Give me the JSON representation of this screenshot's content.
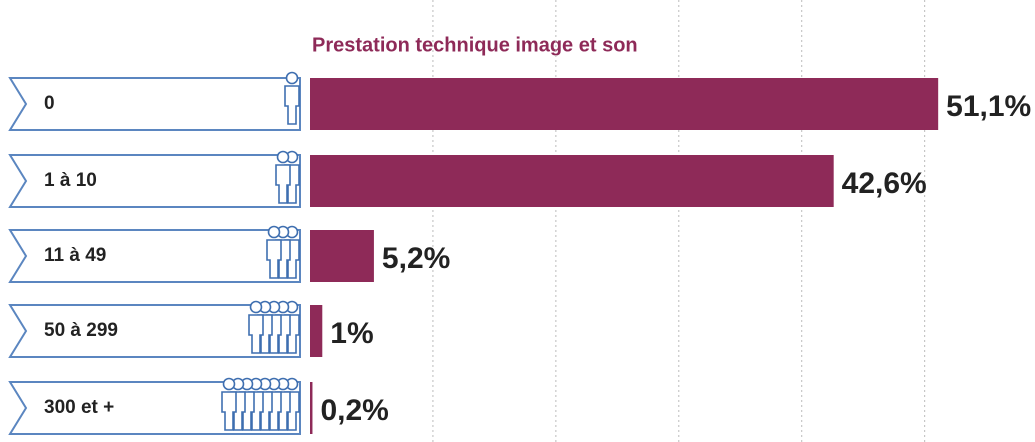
{
  "chart_data": {
    "type": "hbar",
    "title": "Prestation technique image et son",
    "categories": [
      "0",
      "1 à 10",
      "11 à 49",
      "50 à 299",
      "300 et +"
    ],
    "values": [
      51.1,
      42.6,
      5.2,
      1,
      0.2
    ],
    "value_labels": [
      "51,1%",
      "42,6%",
      "5,2%",
      "1%",
      "0,2%"
    ],
    "color": "#8e2a58",
    "xlim": [
      0,
      58
    ],
    "xticks": [
      10,
      20,
      30,
      40,
      50
    ],
    "grid": true
  }
}
